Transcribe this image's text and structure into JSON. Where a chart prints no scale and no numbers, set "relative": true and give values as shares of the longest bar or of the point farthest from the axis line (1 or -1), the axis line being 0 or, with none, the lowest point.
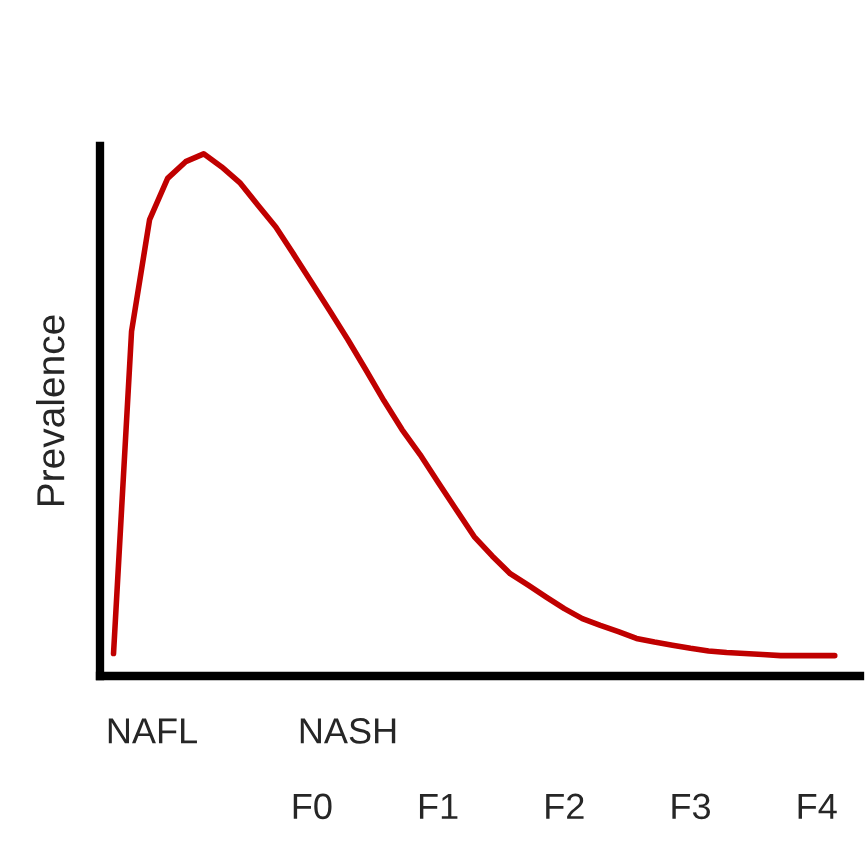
{
  "chart_data": {
    "type": "line",
    "relative": true,
    "ylabel": "Prevalence",
    "categories": [
      null,
      null,
      null,
      null,
      null,
      null,
      null,
      null,
      null,
      null,
      null,
      "F0",
      null,
      null,
      null,
      null,
      null,
      null,
      "F1",
      null,
      null,
      null,
      null,
      null,
      null,
      "F2",
      null,
      null,
      null,
      null,
      null,
      null,
      "F3",
      null,
      null,
      null,
      null,
      null,
      null,
      "F4",
      null
    ],
    "series": [
      {
        "color": "#c00000",
        "values": [
          0.043,
          0.66,
          0.874,
          0.953,
          0.985,
          1.0,
          0.975,
          0.945,
          0.902,
          0.86,
          0.807,
          0.753,
          0.699,
          0.644,
          0.586,
          0.527,
          0.472,
          0.424,
          0.371,
          0.319,
          0.267,
          0.23,
          0.196,
          0.174,
          0.151,
          0.129,
          0.11,
          0.097,
          0.085,
          0.072,
          0.065,
          0.059,
          0.053,
          0.048,
          0.045,
          0.043,
          0.041,
          0.039,
          0.039,
          0.039,
          0.039
        ]
      }
    ],
    "annotations": [
      "NAFL",
      "NASH"
    ],
    "grid": false,
    "legend": false,
    "marker": "none",
    "line_style": "solid"
  }
}
